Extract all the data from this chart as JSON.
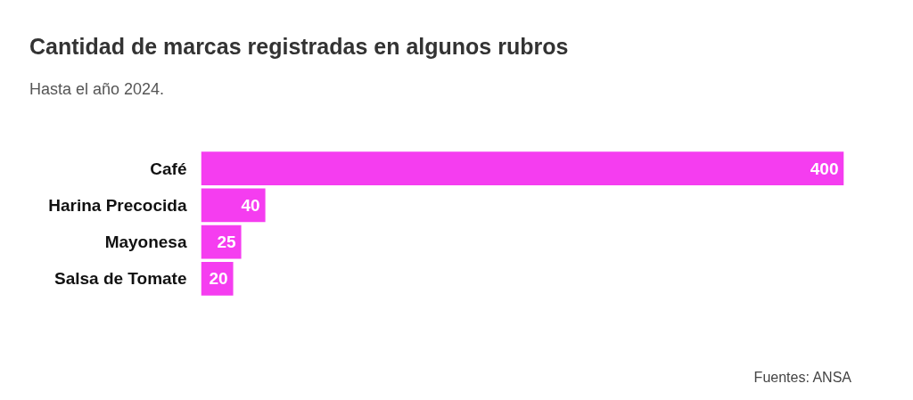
{
  "chart_data": {
    "type": "bar",
    "orientation": "horizontal",
    "title": "Cantidad de marcas registradas en algunos rubros",
    "subtitle": "Hasta el año 2024.",
    "categories": [
      "Café",
      "Harina Precocida",
      "Mayonesa",
      "Salsa de Tomate"
    ],
    "values": [
      400,
      40,
      25,
      20
    ],
    "color": "#f53df0",
    "data_labels": true,
    "xlim": [
      0,
      400
    ],
    "grid": false,
    "annotations": [
      "Fuentes: ANSA"
    ]
  }
}
